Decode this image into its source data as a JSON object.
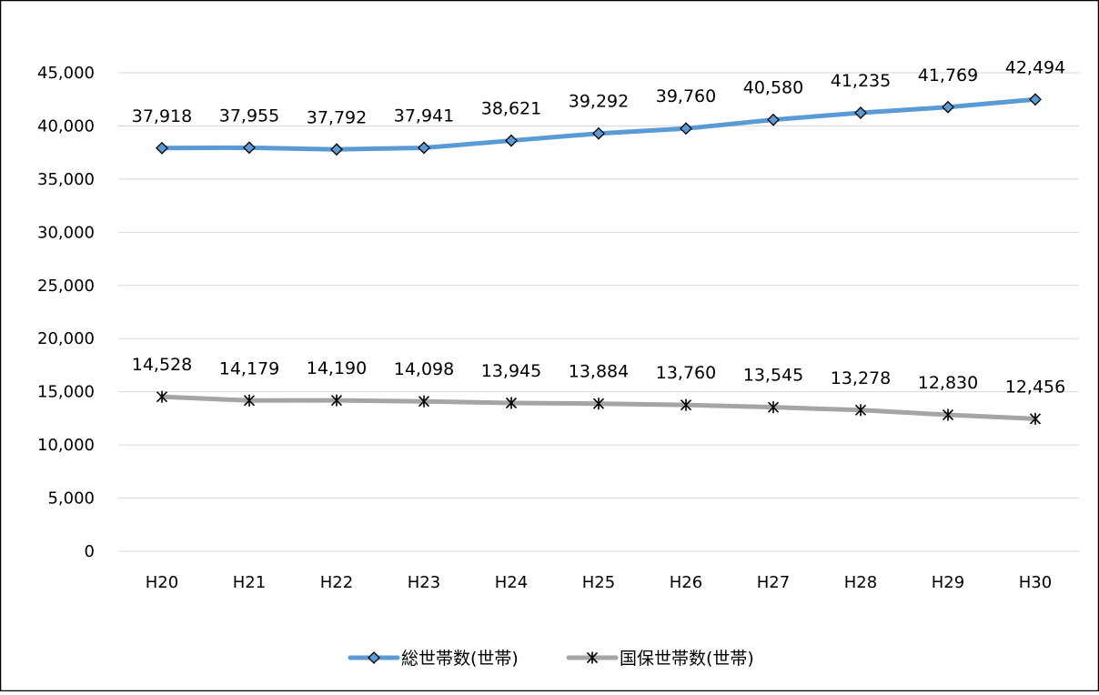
{
  "chart_data": {
    "type": "line",
    "title": "",
    "xlabel": "",
    "ylabel": "",
    "categories": [
      "H20",
      "H21",
      "H22",
      "H23",
      "H24",
      "H25",
      "H26",
      "H27",
      "H28",
      "H29",
      "H30"
    ],
    "ylim": [
      0,
      45000
    ],
    "y_ticks": [
      0,
      5000,
      10000,
      15000,
      20000,
      25000,
      30000,
      35000,
      40000,
      45000
    ],
    "y_tick_labels": [
      "0",
      "5,000",
      "10,000",
      "15,000",
      "20,000",
      "25,000",
      "30,000",
      "35,000",
      "40,000",
      "45,000"
    ],
    "grid": true,
    "legend_position": "bottom",
    "series": [
      {
        "name": "総世帯数(世帯)",
        "marker": "diamond",
        "color": "#5B9BD5",
        "values": [
          37918,
          37955,
          37792,
          37941,
          38621,
          39292,
          39760,
          40580,
          41235,
          41769,
          42494
        ],
        "labels": [
          "37,918",
          "37,955",
          "37,792",
          "37,941",
          "38,621",
          "39,292",
          "39,760",
          "40,580",
          "41,235",
          "41,769",
          "42,494"
        ]
      },
      {
        "name": "国保世帯数(世帯)",
        "marker": "asterisk",
        "color": "#A5A5A5",
        "values": [
          14528,
          14179,
          14190,
          14098,
          13945,
          13884,
          13760,
          13545,
          13278,
          12830,
          12456
        ],
        "labels": [
          "14,528",
          "14,179",
          "14,190",
          "14,098",
          "13,945",
          "13,884",
          "13,760",
          "13,545",
          "13,278",
          "12,830",
          "12,456"
        ]
      }
    ]
  }
}
